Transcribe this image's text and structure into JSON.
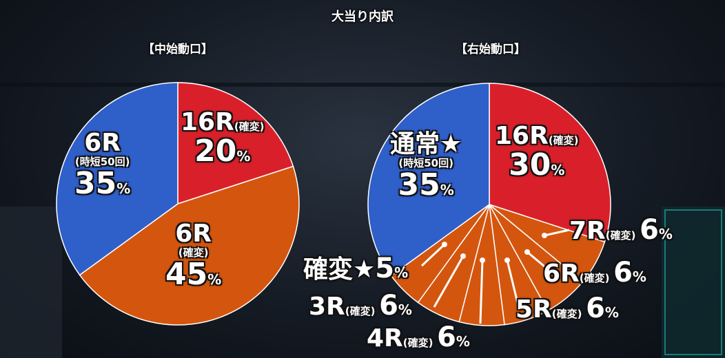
{
  "page_title": "大当り内訳",
  "chart_data": [
    {
      "type": "pie",
      "title": "【中始動口】",
      "slices": [
        {
          "round": "16R",
          "note": "(確変)",
          "value": 20,
          "color": "#d9202a"
        },
        {
          "round": "6R",
          "note": "(確変)",
          "value": 45,
          "color": "#d4560e"
        },
        {
          "round": "6R",
          "note": "(時短50回)",
          "value": 35,
          "color": "#2f5fc9"
        }
      ],
      "unit": "%"
    },
    {
      "type": "pie",
      "title": "【右始動口】",
      "slices": [
        {
          "round": "16R",
          "note": "(確変)",
          "value": 30,
          "color": "#d9202a"
        },
        {
          "round": "7R",
          "note": "(確変)",
          "value": 6,
          "color": "#d4560e"
        },
        {
          "round": "6R",
          "note": "(確変)",
          "value": 6,
          "color": "#d4560e"
        },
        {
          "round": "5R",
          "note": "(確変)",
          "value": 6,
          "color": "#d4560e"
        },
        {
          "round": "4R",
          "note": "(確変)",
          "value": 6,
          "color": "#d4560e"
        },
        {
          "round": "3R",
          "note": "(確変)",
          "value": 6,
          "color": "#d4560e"
        },
        {
          "round": "確変★",
          "note": "",
          "value": 5,
          "color": "#d4560e"
        },
        {
          "round": "通常★",
          "note": "(時短50回)",
          "value": 35,
          "color": "#2f5fc9"
        }
      ],
      "unit": "%"
    }
  ]
}
